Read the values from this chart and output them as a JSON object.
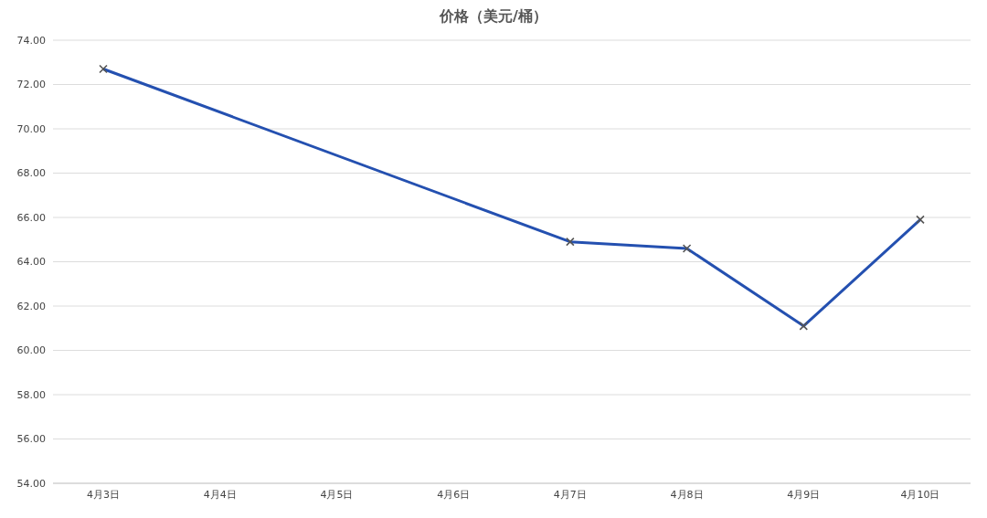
{
  "chart_data": {
    "type": "line",
    "title": "价格（美元/桶）",
    "categories": [
      "4月3日",
      "4月4日",
      "4月5日",
      "4月6日",
      "4月7日",
      "4月8日",
      "4月9日",
      "4月10日"
    ],
    "series": [
      {
        "color": "#2450b0",
        "values": [
          72.7,
          null,
          null,
          null,
          64.9,
          64.6,
          61.1,
          65.9
        ]
      }
    ],
    "ylim": [
      54,
      74
    ],
    "yticks": [
      {
        "value": 54,
        "label": "54.00"
      },
      {
        "value": 56,
        "label": "56.00"
      },
      {
        "value": 58,
        "label": "58.00"
      },
      {
        "value": 60,
        "label": "60.00"
      },
      {
        "value": 62,
        "label": "62.00"
      },
      {
        "value": 64,
        "label": "64.00"
      },
      {
        "value": 66,
        "label": "66.00"
      },
      {
        "value": 68,
        "label": "68.00"
      },
      {
        "value": 70,
        "label": "70.00"
      },
      {
        "value": 72,
        "label": "72.00"
      },
      {
        "value": 74,
        "label": "74.00"
      }
    ],
    "grid": "y",
    "marker": "cross",
    "line_style": "solid"
  }
}
